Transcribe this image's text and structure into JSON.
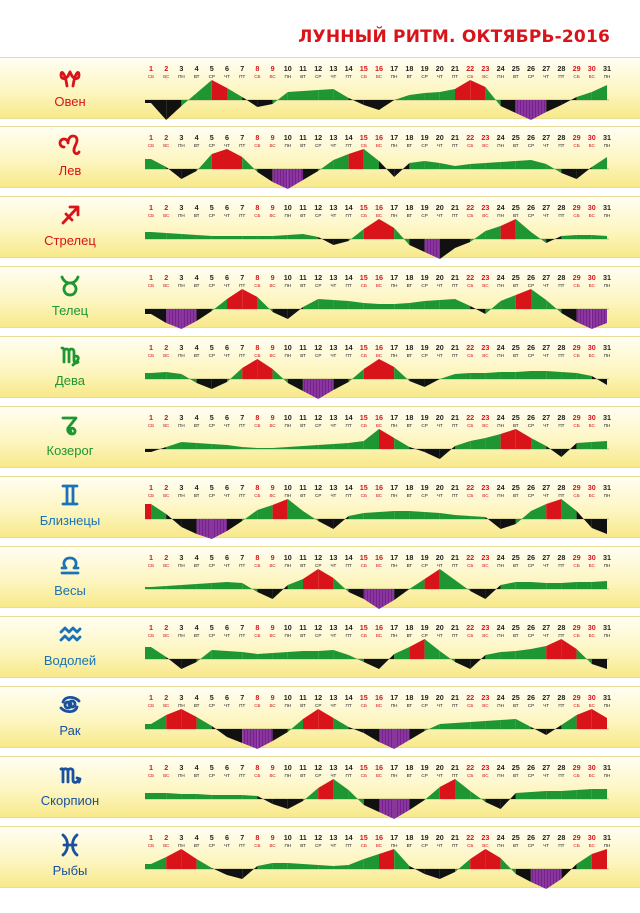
{
  "title": "ЛУННЫЙ РИТМ. ОКТЯБРЬ-2016",
  "days": [
    "1",
    "2",
    "3",
    "4",
    "5",
    "6",
    "7",
    "8",
    "9",
    "10",
    "11",
    "12",
    "13",
    "14",
    "15",
    "16",
    "17",
    "18",
    "19",
    "20",
    "21",
    "22",
    "23",
    "24",
    "25",
    "26",
    "27",
    "28",
    "29",
    "30",
    "31"
  ],
  "weekdays": [
    "СБ",
    "ВС",
    "ПН",
    "ВТ",
    "СР",
    "ЧТ",
    "ПТ",
    "СБ",
    "ВС",
    "ПН",
    "ВТ",
    "СР",
    "ЧТ",
    "ПТ",
    "СБ",
    "ВС",
    "ПН",
    "ВТ",
    "СР",
    "ЧТ",
    "ПТ",
    "СБ",
    "ВС",
    "ПН",
    "ВТ",
    "СР",
    "ЧТ",
    "ПТ",
    "СБ",
    "ВС",
    "ПН"
  ],
  "weekend_days": [
    1,
    2,
    8,
    9,
    15,
    16,
    22,
    23,
    29,
    30
  ],
  "colors": {
    "title": "#d8141a",
    "weekend": "#d8141a",
    "weekday": "#222222",
    "peak": "#d8141a",
    "plateau": "#1e9632",
    "low": "#111111",
    "trough": "#7a1f8f",
    "fire_sign": "#d8141a",
    "earth_sign": "#1e9632",
    "air_sign": "#1a72b8",
    "water_sign": "#1a50a0"
  },
  "signs": [
    {
      "id": "aries",
      "name": "Овен",
      "icon": "aries-icon",
      "element": "fire"
    },
    {
      "id": "leo",
      "name": "Лев",
      "icon": "leo-icon",
      "element": "fire"
    },
    {
      "id": "sagittarius",
      "name": "Стрелец",
      "icon": "sagittarius-icon",
      "element": "fire"
    },
    {
      "id": "taurus",
      "name": "Телец",
      "icon": "taurus-icon",
      "element": "earth"
    },
    {
      "id": "virgo",
      "name": "Дева",
      "icon": "virgo-icon",
      "element": "earth"
    },
    {
      "id": "capricorn",
      "name": "Козерог",
      "icon": "capricorn-icon",
      "element": "earth"
    },
    {
      "id": "gemini",
      "name": "Близнецы",
      "icon": "gemini-icon",
      "element": "air"
    },
    {
      "id": "libra",
      "name": "Весы",
      "icon": "libra-icon",
      "element": "air"
    },
    {
      "id": "aquarius",
      "name": "Водолей",
      "icon": "aquarius-icon",
      "element": "air"
    },
    {
      "id": "cancer",
      "name": "Рак",
      "icon": "cancer-icon",
      "element": "water"
    },
    {
      "id": "scorpio",
      "name": "Скорпион",
      "icon": "scorpio-icon",
      "element": "water"
    },
    {
      "id": "pisces",
      "name": "Рыбы",
      "icon": "pisces-icon",
      "element": "water"
    }
  ],
  "chart_data": {
    "type": "area",
    "categories": [
      "1",
      "2",
      "3",
      "4",
      "5",
      "6",
      "7",
      "8",
      "9",
      "10",
      "11",
      "12",
      "13",
      "14",
      "15",
      "16",
      "17",
      "18",
      "19",
      "20",
      "21",
      "22",
      "23",
      "24",
      "25",
      "26",
      "27",
      "28",
      "29",
      "30",
      "31"
    ],
    "ylim": [
      -2,
      2
    ],
    "scale": {
      "2": "peak (red)",
      "1": "plateau (green)",
      "-1": "low (black)",
      "-2": "trough (purple)"
    },
    "series": [
      {
        "name": "Овен",
        "values": [
          -0.3,
          -2,
          -0.6,
          0.7,
          2,
          1.2,
          0.3,
          -0.7,
          -0.4,
          0.8,
          0.9,
          1,
          1.1,
          0.2,
          -0.5,
          -1,
          0,
          0.5,
          0.7,
          0.8,
          1.1,
          2,
          1.3,
          -0.6,
          -1.3,
          -2,
          -1.2,
          -0.5,
          0.3,
          0.8,
          1.5
        ]
      },
      {
        "name": "Лев",
        "values": [
          1,
          0.2,
          -1,
          -0.2,
          1.5,
          2,
          1.2,
          -0.3,
          -1.3,
          -2,
          -1.1,
          -0.2,
          0.9,
          1.5,
          2,
          0.8,
          -0.8,
          0.6,
          0.8,
          0.6,
          0.3,
          0.5,
          0.6,
          0.7,
          0.8,
          0.9,
          0.5,
          -0.4,
          -1,
          0.2,
          1.2
        ]
      },
      {
        "name": "Стрелец",
        "values": [
          0.7,
          0.6,
          0.5,
          0.4,
          0.3,
          0.3,
          0.3,
          0.3,
          0.3,
          0.4,
          0.5,
          0.2,
          -0.6,
          -0.2,
          1,
          2,
          1.1,
          -0.6,
          -1.3,
          -2,
          -0.9,
          -0.3,
          0.8,
          1.3,
          2,
          0.7,
          -0.4,
          0.3,
          0.4,
          0.4,
          0.3
        ]
      },
      {
        "name": "Телец",
        "values": [
          -0.5,
          -1.4,
          -2,
          -1.2,
          -0.2,
          1,
          2,
          1.2,
          -0.3,
          -1,
          0.2,
          1,
          0.9,
          0.8,
          0.6,
          0.5,
          0.5,
          0.6,
          0.8,
          0.9,
          1,
          0.3,
          -0.5,
          0.8,
          1.4,
          2,
          0.9,
          -0.4,
          -1.3,
          -2,
          -1.4
        ]
      },
      {
        "name": "Дева",
        "values": [
          0.6,
          0.7,
          0.5,
          -0.4,
          -1,
          -0.3,
          1.1,
          2,
          1,
          -0.4,
          -1.2,
          -2,
          -1.1,
          -0.3,
          1,
          2,
          1.2,
          -0.2,
          -0.8,
          0,
          0.5,
          0.6,
          0.6,
          0.7,
          0.7,
          0.8,
          0.8,
          0.7,
          0.6,
          0.3,
          -0.6
        ]
      },
      {
        "name": "Козерог",
        "values": [
          -0.3,
          0.2,
          0.7,
          0.6,
          0.5,
          0.4,
          0.2,
          0.1,
          0.1,
          0.2,
          0.3,
          0.4,
          0.5,
          0.6,
          0.8,
          2,
          1.1,
          0.2,
          -0.3,
          -1,
          0.3,
          0.8,
          1.1,
          1.5,
          2,
          1.1,
          0.3,
          -0.8,
          0.6,
          0.7,
          0.8
        ]
      },
      {
        "name": "Близнецы",
        "values": [
          1.5,
          0.5,
          -0.8,
          -1.5,
          -2,
          -1.2,
          -0.2,
          0.9,
          1.4,
          2,
          0.8,
          -0.2,
          -1,
          0.3,
          0.6,
          0.7,
          0.8,
          0.8,
          0.7,
          0.6,
          0.4,
          0.3,
          0.2,
          -1,
          -0.5,
          0.8,
          1.5,
          2,
          0.8,
          -0.9,
          -1.5
        ]
      },
      {
        "name": "Весы",
        "values": [
          0.2,
          0.3,
          0.4,
          0.5,
          0.6,
          0.7,
          0.6,
          -0.3,
          -1,
          0.4,
          1,
          2,
          1.1,
          -0.3,
          -1,
          -2,
          -1.1,
          0,
          1,
          2,
          0.9,
          -0.2,
          -1,
          0.4,
          0.7,
          0.7,
          0.6,
          0.6,
          0.7,
          0.7,
          0.8
        ]
      },
      {
        "name": "Водолей",
        "values": [
          1.2,
          0.2,
          -1,
          -0.3,
          0.9,
          0.8,
          0.7,
          0.5,
          0.6,
          0.7,
          0.8,
          0.8,
          0.9,
          0.4,
          -0.3,
          -1,
          0.5,
          1.2,
          2,
          0.8,
          -0.3,
          -1,
          0.4,
          0.7,
          0.8,
          1,
          1.3,
          2,
          1,
          -0.5,
          -1
        ]
      },
      {
        "name": "Рак",
        "values": [
          0.5,
          1.4,
          2,
          1.2,
          0.3,
          -0.8,
          -1.4,
          -2,
          -1.2,
          -0.3,
          1,
          2,
          1.1,
          0.2,
          -0.4,
          -1.3,
          -2,
          -1.1,
          -0.2,
          0.5,
          0.6,
          0.7,
          0.8,
          0.9,
          1,
          0.2,
          -0.6,
          0.4,
          1.4,
          2,
          1.1
        ]
      },
      {
        "name": "Скорпион",
        "values": [
          0.6,
          0.6,
          0.5,
          0.5,
          0.4,
          0.4,
          0.4,
          0.3,
          -0.5,
          -1,
          -0.2,
          1.1,
          2,
          0.9,
          -0.6,
          -1.3,
          -2,
          -1.1,
          -0.1,
          1.2,
          2,
          0.8,
          -0.3,
          -1,
          0.6,
          0.7,
          0.8,
          0.8,
          0.9,
          1,
          1
        ]
      },
      {
        "name": "Рыбы",
        "values": [
          0.5,
          1.2,
          2,
          1,
          0.1,
          -0.6,
          -1,
          0.3,
          0.6,
          0.6,
          0.5,
          0.4,
          0.3,
          0.4,
          1,
          1.5,
          2,
          0.3,
          -0.5,
          -1,
          -0.3,
          1,
          2,
          1.1,
          -0.5,
          -1.3,
          -2,
          -1,
          0.5,
          1.5,
          2
        ]
      }
    ]
  }
}
